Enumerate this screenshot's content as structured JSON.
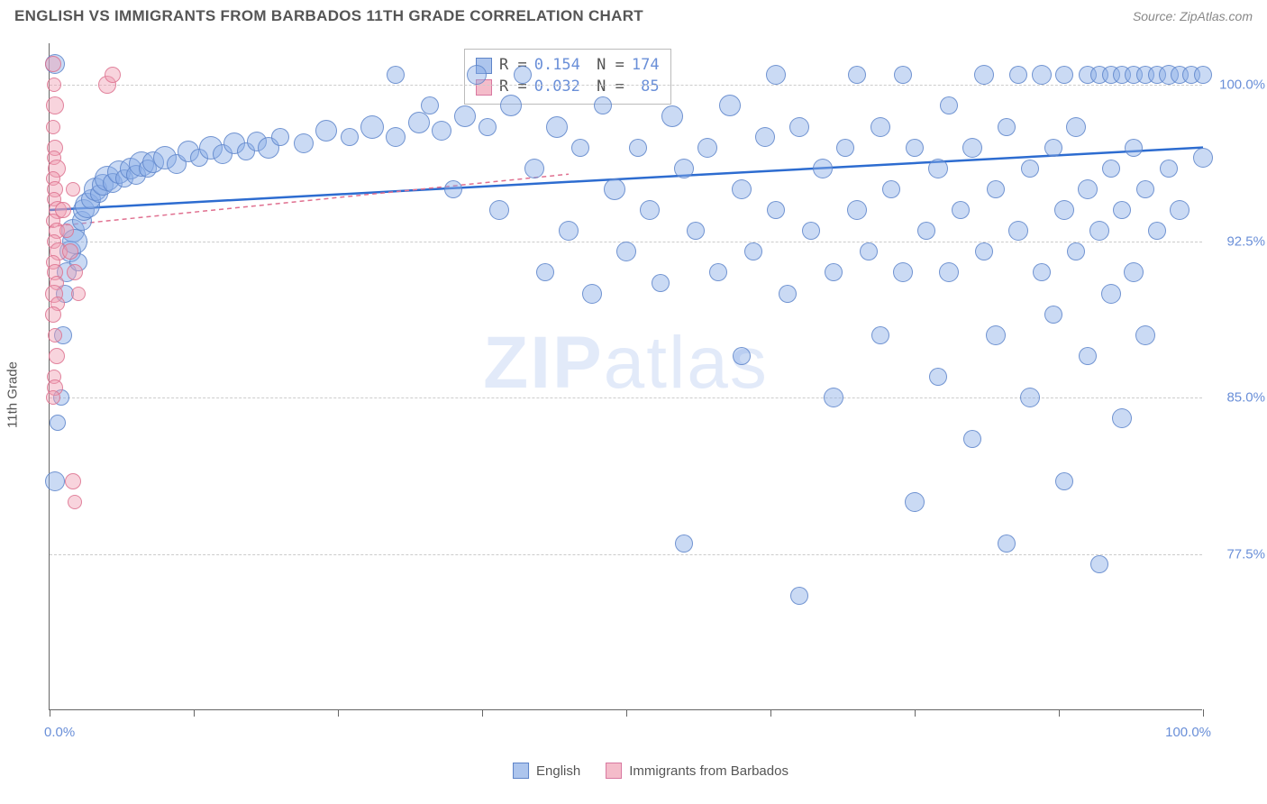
{
  "header": {
    "title": "ENGLISH VS IMMIGRANTS FROM BARBADOS 11TH GRADE CORRELATION CHART",
    "source": "Source: ZipAtlas.com"
  },
  "chart": {
    "type": "scatter",
    "ylabel": "11th Grade",
    "xlim": [
      0,
      100
    ],
    "ylim": [
      70,
      102
    ],
    "xticks": [
      0,
      12.5,
      25,
      37.5,
      50,
      62.5,
      75,
      87.5,
      100
    ],
    "xtick_labels_shown": {
      "0": "0.0%",
      "100": "100.0%"
    },
    "yticks": [
      77.5,
      85.0,
      92.5,
      100.0
    ],
    "ytick_labels": [
      "77.5%",
      "85.0%",
      "92.5%",
      "100.0%"
    ],
    "grid_color": "#cccccc",
    "background_color": "#ffffff",
    "axis_color": "#666666",
    "series": [
      {
        "name": "English",
        "label": "English",
        "color_fill": "#8aade6",
        "color_stroke": "#5e84c8",
        "fill_opacity": 0.45,
        "R": "0.154",
        "N": "174",
        "trend": {
          "y_at_x0": 94.0,
          "y_at_x100": 97.0,
          "color": "#2d6cd0",
          "width": 2.5,
          "dash": "none"
        },
        "points": [
          {
            "x": 0.5,
            "y": 101,
            "r": 11
          },
          {
            "x": 0.5,
            "y": 81,
            "r": 11
          },
          {
            "x": 0.7,
            "y": 83.8,
            "r": 9
          },
          {
            "x": 1,
            "y": 85,
            "r": 9
          },
          {
            "x": 1.2,
            "y": 88,
            "r": 10
          },
          {
            "x": 1.3,
            "y": 90,
            "r": 10
          },
          {
            "x": 1.5,
            "y": 91,
            "r": 11
          },
          {
            "x": 1.8,
            "y": 92,
            "r": 12
          },
          {
            "x": 2,
            "y": 93,
            "r": 13
          },
          {
            "x": 2.2,
            "y": 92.5,
            "r": 14
          },
          {
            "x": 2.5,
            "y": 91.5,
            "r": 10
          },
          {
            "x": 2.8,
            "y": 93.5,
            "r": 11
          },
          {
            "x": 3,
            "y": 94,
            "r": 12
          },
          {
            "x": 3.3,
            "y": 94.2,
            "r": 14
          },
          {
            "x": 3.6,
            "y": 94.5,
            "r": 11
          },
          {
            "x": 4,
            "y": 95,
            "r": 13
          },
          {
            "x": 4.3,
            "y": 94.8,
            "r": 10
          },
          {
            "x": 4.6,
            "y": 95.2,
            "r": 12
          },
          {
            "x": 5,
            "y": 95.5,
            "r": 14
          },
          {
            "x": 5.5,
            "y": 95.3,
            "r": 11
          },
          {
            "x": 6,
            "y": 95.8,
            "r": 13
          },
          {
            "x": 6.5,
            "y": 95.5,
            "r": 10
          },
          {
            "x": 7,
            "y": 96,
            "r": 12
          },
          {
            "x": 7.5,
            "y": 95.7,
            "r": 11
          },
          {
            "x": 8,
            "y": 96.2,
            "r": 14
          },
          {
            "x": 8.5,
            "y": 96,
            "r": 10
          },
          {
            "x": 9,
            "y": 96.3,
            "r": 12
          },
          {
            "x": 10,
            "y": 96.5,
            "r": 13
          },
          {
            "x": 11,
            "y": 96.2,
            "r": 11
          },
          {
            "x": 12,
            "y": 96.8,
            "r": 12
          },
          {
            "x": 13,
            "y": 96.5,
            "r": 10
          },
          {
            "x": 14,
            "y": 97,
            "r": 13
          },
          {
            "x": 15,
            "y": 96.7,
            "r": 11
          },
          {
            "x": 16,
            "y": 97.2,
            "r": 12
          },
          {
            "x": 17,
            "y": 96.8,
            "r": 10
          },
          {
            "x": 18,
            "y": 97.3,
            "r": 11
          },
          {
            "x": 19,
            "y": 97,
            "r": 12
          },
          {
            "x": 20,
            "y": 97.5,
            "r": 10
          },
          {
            "x": 22,
            "y": 97.2,
            "r": 11
          },
          {
            "x": 24,
            "y": 97.8,
            "r": 12
          },
          {
            "x": 26,
            "y": 97.5,
            "r": 10
          },
          {
            "x": 28,
            "y": 98,
            "r": 13
          },
          {
            "x": 30,
            "y": 97.5,
            "r": 11
          },
          {
            "x": 30,
            "y": 100.5,
            "r": 10
          },
          {
            "x": 32,
            "y": 98.2,
            "r": 12
          },
          {
            "x": 33,
            "y": 99,
            "r": 10
          },
          {
            "x": 34,
            "y": 97.8,
            "r": 11
          },
          {
            "x": 35,
            "y": 95,
            "r": 10
          },
          {
            "x": 36,
            "y": 98.5,
            "r": 12
          },
          {
            "x": 37,
            "y": 100.5,
            "r": 11
          },
          {
            "x": 38,
            "y": 98,
            "r": 10
          },
          {
            "x": 39,
            "y": 94,
            "r": 11
          },
          {
            "x": 40,
            "y": 99,
            "r": 12
          },
          {
            "x": 41,
            "y": 100.5,
            "r": 10
          },
          {
            "x": 42,
            "y": 96,
            "r": 11
          },
          {
            "x": 43,
            "y": 91,
            "r": 10
          },
          {
            "x": 44,
            "y": 98,
            "r": 12
          },
          {
            "x": 45,
            "y": 93,
            "r": 11
          },
          {
            "x": 46,
            "y": 97,
            "r": 10
          },
          {
            "x": 47,
            "y": 90,
            "r": 11
          },
          {
            "x": 48,
            "y": 99,
            "r": 10
          },
          {
            "x": 49,
            "y": 95,
            "r": 12
          },
          {
            "x": 50,
            "y": 92,
            "r": 11
          },
          {
            "x": 51,
            "y": 97,
            "r": 10
          },
          {
            "x": 52,
            "y": 94,
            "r": 11
          },
          {
            "x": 53,
            "y": 90.5,
            "r": 10
          },
          {
            "x": 54,
            "y": 98.5,
            "r": 12
          },
          {
            "x": 55,
            "y": 96,
            "r": 11
          },
          {
            "x": 55,
            "y": 78,
            "r": 10
          },
          {
            "x": 56,
            "y": 93,
            "r": 10
          },
          {
            "x": 57,
            "y": 97,
            "r": 11
          },
          {
            "x": 58,
            "y": 91,
            "r": 10
          },
          {
            "x": 59,
            "y": 99,
            "r": 12
          },
          {
            "x": 60,
            "y": 95,
            "r": 11
          },
          {
            "x": 60,
            "y": 87,
            "r": 10
          },
          {
            "x": 61,
            "y": 92,
            "r": 10
          },
          {
            "x": 62,
            "y": 97.5,
            "r": 11
          },
          {
            "x": 63,
            "y": 94,
            "r": 10
          },
          {
            "x": 63,
            "y": 100.5,
            "r": 11
          },
          {
            "x": 64,
            "y": 90,
            "r": 10
          },
          {
            "x": 65,
            "y": 98,
            "r": 11
          },
          {
            "x": 65,
            "y": 75.5,
            "r": 10
          },
          {
            "x": 66,
            "y": 93,
            "r": 10
          },
          {
            "x": 67,
            "y": 96,
            "r": 11
          },
          {
            "x": 68,
            "y": 91,
            "r": 10
          },
          {
            "x": 68,
            "y": 85,
            "r": 11
          },
          {
            "x": 69,
            "y": 97,
            "r": 10
          },
          {
            "x": 70,
            "y": 94,
            "r": 11
          },
          {
            "x": 70,
            "y": 100.5,
            "r": 10
          },
          {
            "x": 71,
            "y": 92,
            "r": 10
          },
          {
            "x": 72,
            "y": 98,
            "r": 11
          },
          {
            "x": 72,
            "y": 88,
            "r": 10
          },
          {
            "x": 73,
            "y": 95,
            "r": 10
          },
          {
            "x": 74,
            "y": 91,
            "r": 11
          },
          {
            "x": 74,
            "y": 100.5,
            "r": 10
          },
          {
            "x": 75,
            "y": 97,
            "r": 10
          },
          {
            "x": 75,
            "y": 80,
            "r": 11
          },
          {
            "x": 76,
            "y": 93,
            "r": 10
          },
          {
            "x": 77,
            "y": 96,
            "r": 11
          },
          {
            "x": 77,
            "y": 86,
            "r": 10
          },
          {
            "x": 78,
            "y": 99,
            "r": 10
          },
          {
            "x": 78,
            "y": 91,
            "r": 11
          },
          {
            "x": 79,
            "y": 94,
            "r": 10
          },
          {
            "x": 80,
            "y": 97,
            "r": 11
          },
          {
            "x": 80,
            "y": 83,
            "r": 10
          },
          {
            "x": 81,
            "y": 92,
            "r": 10
          },
          {
            "x": 81,
            "y": 100.5,
            "r": 11
          },
          {
            "x": 82,
            "y": 95,
            "r": 10
          },
          {
            "x": 82,
            "y": 88,
            "r": 11
          },
          {
            "x": 83,
            "y": 98,
            "r": 10
          },
          {
            "x": 83,
            "y": 78,
            "r": 10
          },
          {
            "x": 84,
            "y": 93,
            "r": 11
          },
          {
            "x": 84,
            "y": 100.5,
            "r": 10
          },
          {
            "x": 85,
            "y": 96,
            "r": 10
          },
          {
            "x": 85,
            "y": 85,
            "r": 11
          },
          {
            "x": 86,
            "y": 91,
            "r": 10
          },
          {
            "x": 86,
            "y": 100.5,
            "r": 11
          },
          {
            "x": 87,
            "y": 97,
            "r": 10
          },
          {
            "x": 87,
            "y": 89,
            "r": 10
          },
          {
            "x": 88,
            "y": 94,
            "r": 11
          },
          {
            "x": 88,
            "y": 100.5,
            "r": 10
          },
          {
            "x": 88,
            "y": 81,
            "r": 10
          },
          {
            "x": 89,
            "y": 98,
            "r": 11
          },
          {
            "x": 89,
            "y": 92,
            "r": 10
          },
          {
            "x": 90,
            "y": 100.5,
            "r": 10
          },
          {
            "x": 90,
            "y": 95,
            "r": 11
          },
          {
            "x": 90,
            "y": 87,
            "r": 10
          },
          {
            "x": 91,
            "y": 100.5,
            "r": 10
          },
          {
            "x": 91,
            "y": 93,
            "r": 11
          },
          {
            "x": 91,
            "y": 77,
            "r": 10
          },
          {
            "x": 92,
            "y": 100.5,
            "r": 10
          },
          {
            "x": 92,
            "y": 96,
            "r": 10
          },
          {
            "x": 92,
            "y": 90,
            "r": 11
          },
          {
            "x": 93,
            "y": 100.5,
            "r": 10
          },
          {
            "x": 93,
            "y": 94,
            "r": 10
          },
          {
            "x": 93,
            "y": 84,
            "r": 11
          },
          {
            "x": 94,
            "y": 100.5,
            "r": 10
          },
          {
            "x": 94,
            "y": 97,
            "r": 10
          },
          {
            "x": 94,
            "y": 91,
            "r": 11
          },
          {
            "x": 95,
            "y": 100.5,
            "r": 10
          },
          {
            "x": 95,
            "y": 95,
            "r": 10
          },
          {
            "x": 95,
            "y": 88,
            "r": 11
          },
          {
            "x": 96,
            "y": 100.5,
            "r": 10
          },
          {
            "x": 96,
            "y": 93,
            "r": 10
          },
          {
            "x": 97,
            "y": 100.5,
            "r": 11
          },
          {
            "x": 97,
            "y": 96,
            "r": 10
          },
          {
            "x": 98,
            "y": 100.5,
            "r": 10
          },
          {
            "x": 98,
            "y": 94,
            "r": 11
          },
          {
            "x": 99,
            "y": 100.5,
            "r": 10
          },
          {
            "x": 100,
            "y": 96.5,
            "r": 11
          },
          {
            "x": 100,
            "y": 100.5,
            "r": 10
          }
        ]
      },
      {
        "name": "Immigrants from Barbados",
        "label": "Immigrants from Barbados",
        "color_fill": "#f0a0b4",
        "color_stroke": "#d878a0",
        "fill_opacity": 0.45,
        "R": "0.032",
        "N": "85",
        "trend": {
          "y_at_x0": 93.2,
          "y_at_x100": 98.8,
          "color": "#e07090",
          "width": 1.5,
          "dash": "5,4",
          "x_end": 45
        },
        "points": [
          {
            "x": 0.3,
            "y": 101,
            "r": 9
          },
          {
            "x": 0.4,
            "y": 100,
            "r": 8
          },
          {
            "x": 0.5,
            "y": 99,
            "r": 10
          },
          {
            "x": 0.3,
            "y": 98,
            "r": 8
          },
          {
            "x": 0.5,
            "y": 97,
            "r": 9
          },
          {
            "x": 0.4,
            "y": 96.5,
            "r": 8
          },
          {
            "x": 0.6,
            "y": 96,
            "r": 10
          },
          {
            "x": 0.3,
            "y": 95.5,
            "r": 8
          },
          {
            "x": 0.5,
            "y": 95,
            "r": 9
          },
          {
            "x": 0.4,
            "y": 94.5,
            "r": 8
          },
          {
            "x": 0.7,
            "y": 94,
            "r": 10
          },
          {
            "x": 0.3,
            "y": 93.5,
            "r": 8
          },
          {
            "x": 0.6,
            "y": 93,
            "r": 9
          },
          {
            "x": 0.4,
            "y": 92.5,
            "r": 8
          },
          {
            "x": 0.8,
            "y": 92,
            "r": 10
          },
          {
            "x": 0.3,
            "y": 91.5,
            "r": 8
          },
          {
            "x": 0.5,
            "y": 91,
            "r": 9
          },
          {
            "x": 0.6,
            "y": 90.5,
            "r": 8
          },
          {
            "x": 0.4,
            "y": 90,
            "r": 10
          },
          {
            "x": 0.7,
            "y": 89.5,
            "r": 8
          },
          {
            "x": 0.3,
            "y": 89,
            "r": 9
          },
          {
            "x": 0.5,
            "y": 88,
            "r": 8
          },
          {
            "x": 0.6,
            "y": 87,
            "r": 9
          },
          {
            "x": 0.4,
            "y": 86,
            "r": 8
          },
          {
            "x": 0.5,
            "y": 85.5,
            "r": 9
          },
          {
            "x": 0.3,
            "y": 85,
            "r": 8
          },
          {
            "x": 1.2,
            "y": 94,
            "r": 9
          },
          {
            "x": 1.5,
            "y": 93,
            "r": 8
          },
          {
            "x": 1.8,
            "y": 92,
            "r": 9
          },
          {
            "x": 2,
            "y": 95,
            "r": 8
          },
          {
            "x": 2.2,
            "y": 91,
            "r": 9
          },
          {
            "x": 2.5,
            "y": 90,
            "r": 8
          },
          {
            "x": 2.0,
            "y": 81,
            "r": 9
          },
          {
            "x": 2.2,
            "y": 80,
            "r": 8
          },
          {
            "x": 5,
            "y": 100,
            "r": 10
          },
          {
            "x": 5.5,
            "y": 100.5,
            "r": 9
          }
        ]
      }
    ],
    "bottom_legend": [
      "English",
      "Immigrants from Barbados"
    ],
    "watermark": {
      "text1": "ZIP",
      "text2": "atlas"
    }
  }
}
